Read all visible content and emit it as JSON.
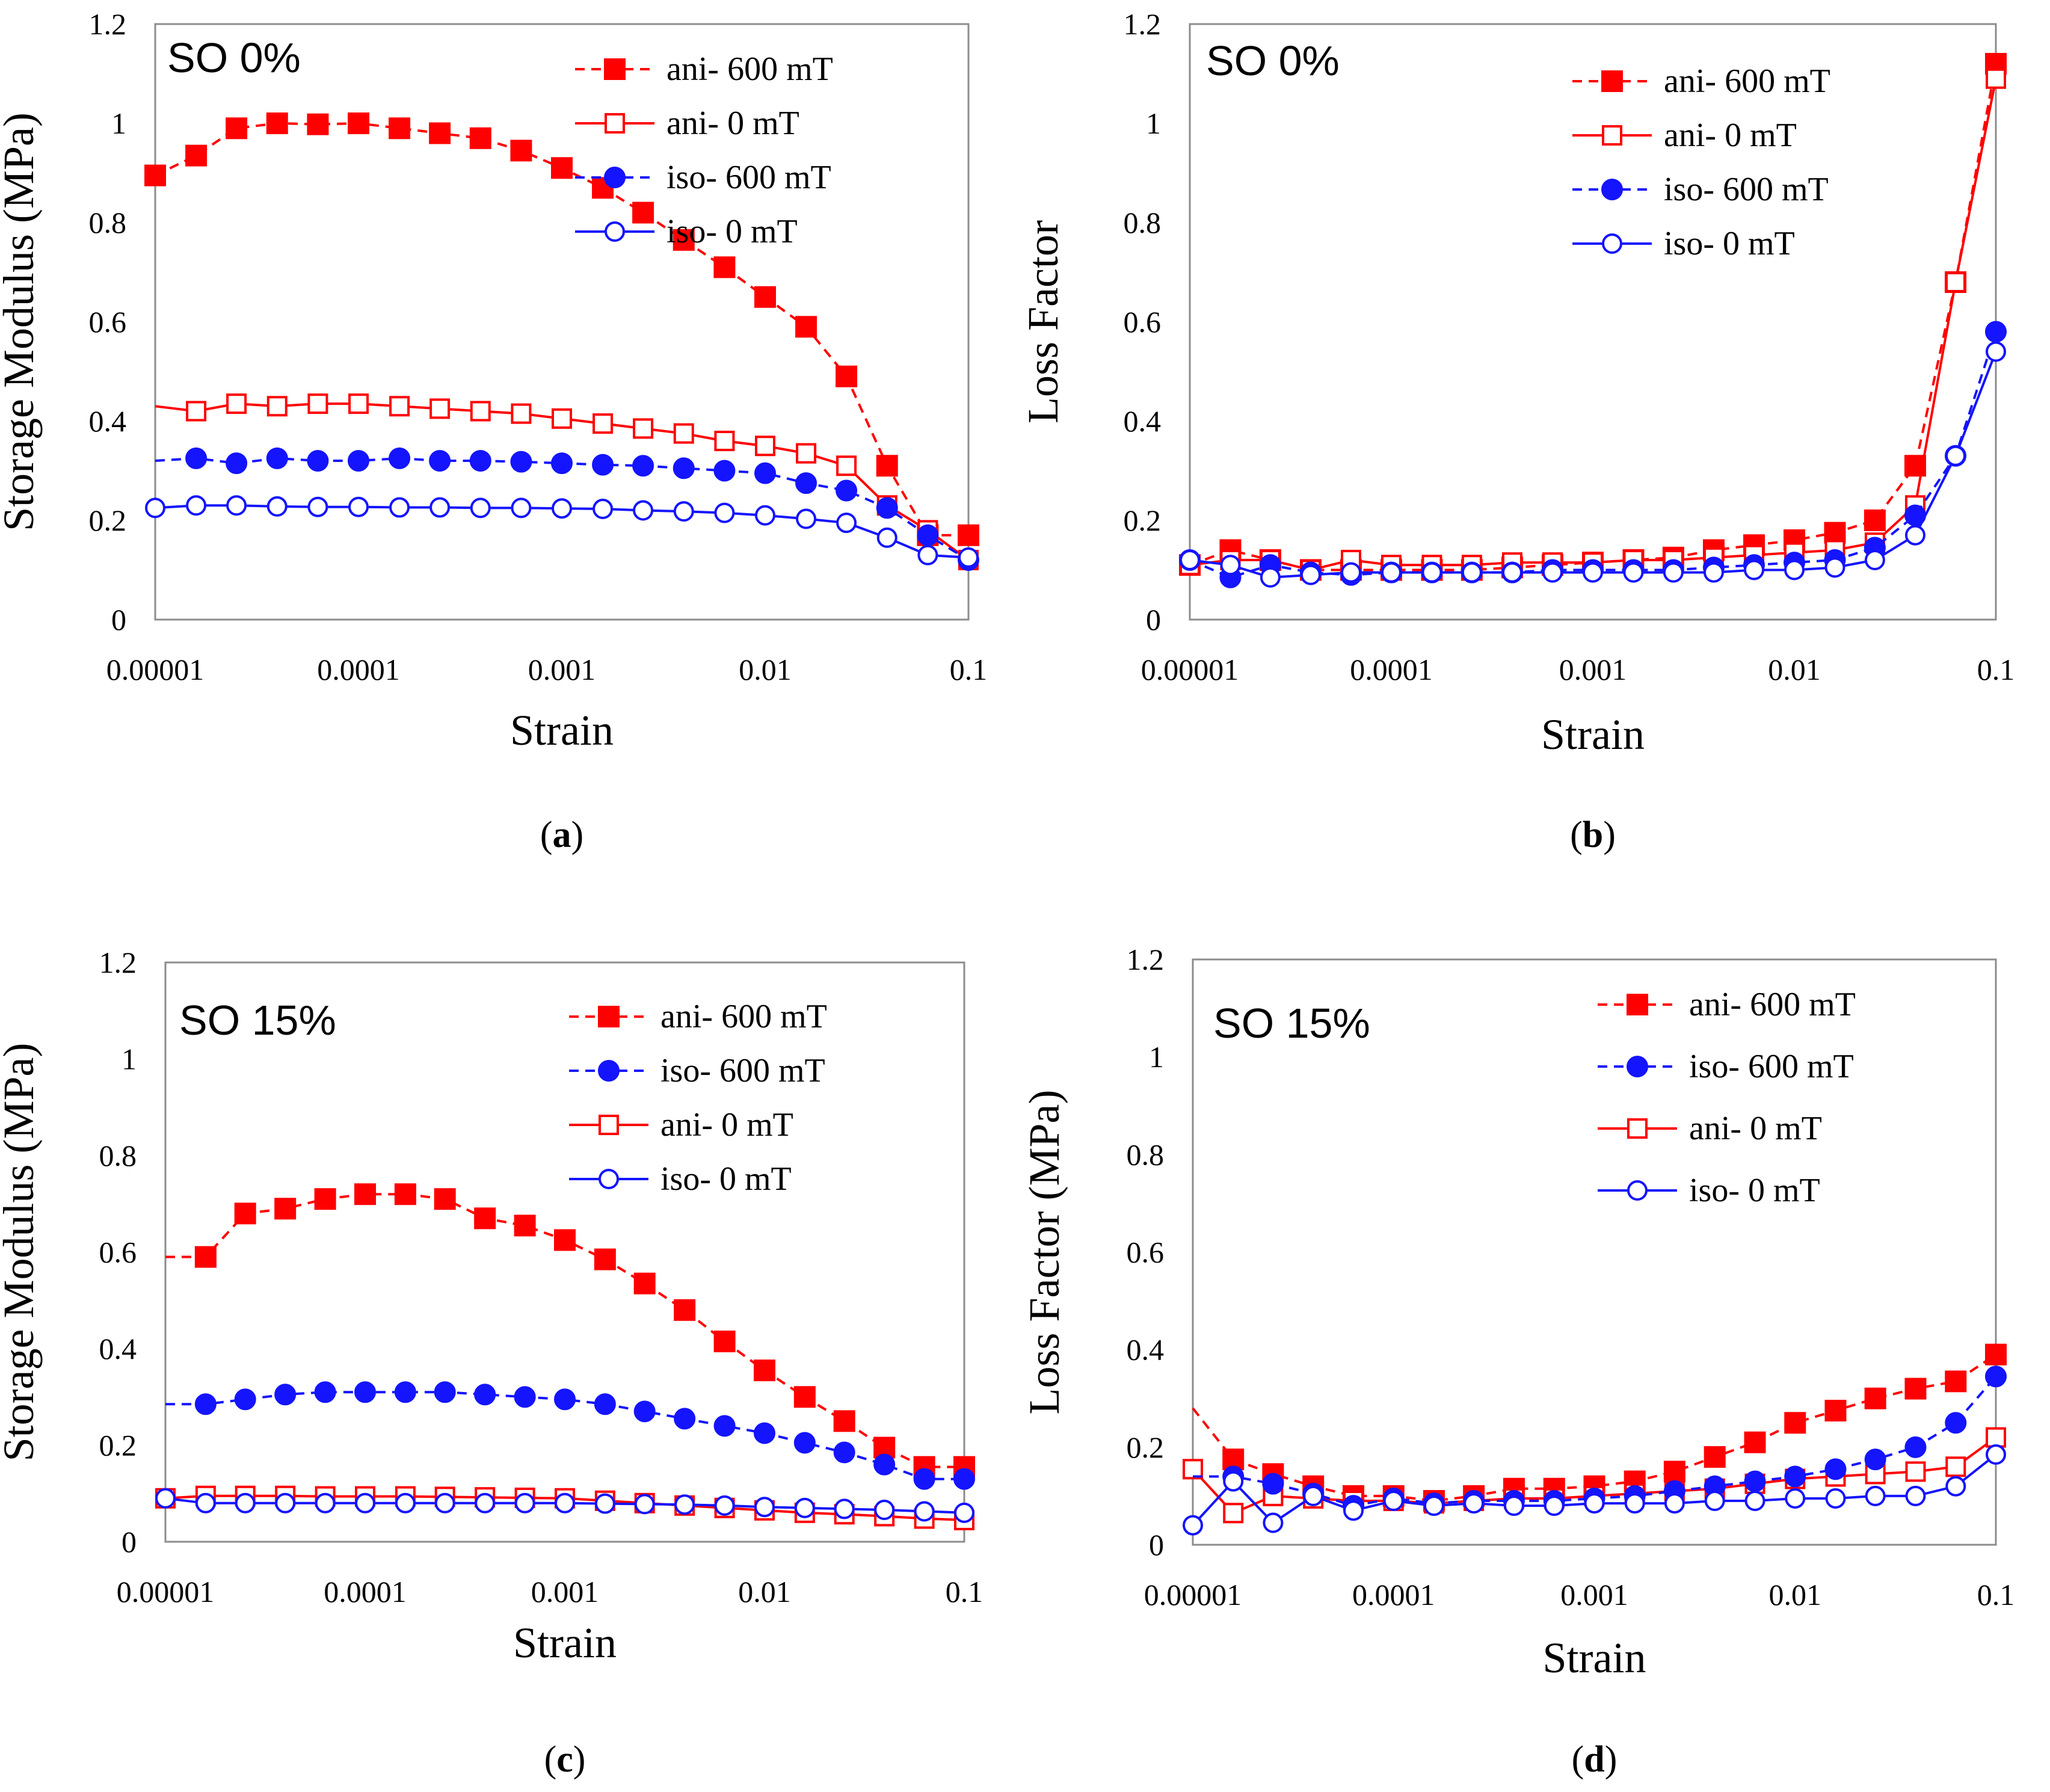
{
  "colors": {
    "red": "#ff0000",
    "blue": "#1414ff",
    "frame": "#8c8c8c",
    "axis": "#9a9a9a"
  },
  "chart_data": [
    {
      "id": "a",
      "type": "line",
      "caption": "a",
      "label": "SO 0%",
      "xlabel": "Strain",
      "ylabel": "Storage Modulus (MPa)",
      "xscale": "log",
      "xlim": [
        1e-05,
        0.1
      ],
      "ylim": [
        0,
        1.2
      ],
      "xticks": [
        "0.00001",
        "0.0001",
        "0.001",
        "0.01",
        "0.1"
      ],
      "yticks": [
        "0",
        "0.2",
        "0.4",
        "0.6",
        "0.8",
        "1",
        "1.2"
      ],
      "legend_order": [
        0,
        1,
        2,
        3
      ],
      "series": [
        {
          "name": "ani- 600 mT",
          "color": "red",
          "dashed": true,
          "marker": "square",
          "filled": true,
          "x": [
            1e-05,
            1.59e-05,
            2.51e-05,
            3.98e-05,
            6.31e-05,
            0.0001,
            0.000159,
            0.000251,
            0.000398,
            0.000631,
            0.001,
            0.00159,
            0.00251,
            0.00398,
            0.00631,
            0.01,
            0.0159,
            0.0251,
            0.0398,
            0.0631,
            0.1
          ],
          "y": [
            0.895,
            0.935,
            0.99,
            1.0,
            0.998,
            1.0,
            0.99,
            0.98,
            0.97,
            0.945,
            0.91,
            0.87,
            0.82,
            0.765,
            0.71,
            0.65,
            0.59,
            0.49,
            0.31,
            0.17,
            0.17
          ]
        },
        {
          "name": "ani- 0 mT",
          "color": "red",
          "dashed": false,
          "marker": "square",
          "filled": false,
          "x": [
            1e-05,
            1.59e-05,
            2.51e-05,
            3.98e-05,
            6.31e-05,
            0.0001,
            0.000159,
            0.000251,
            0.000398,
            0.000631,
            0.001,
            0.00159,
            0.00251,
            0.00398,
            0.00631,
            0.01,
            0.0159,
            0.0251,
            0.0398,
            0.0631,
            0.1
          ],
          "y": [
            0.43,
            0.42,
            0.435,
            0.43,
            0.435,
            0.435,
            0.43,
            0.425,
            0.42,
            0.415,
            0.405,
            0.395,
            0.385,
            0.375,
            0.36,
            0.35,
            0.335,
            0.31,
            0.23,
            0.18,
            0.12
          ],
          "marker_from": 1
        },
        {
          "name": "iso- 600 mT",
          "color": "blue",
          "dashed": true,
          "marker": "circle",
          "filled": true,
          "x": [
            1e-05,
            1.59e-05,
            2.51e-05,
            3.98e-05,
            6.31e-05,
            0.0001,
            0.000159,
            0.000251,
            0.000398,
            0.000631,
            0.001,
            0.00159,
            0.00251,
            0.00398,
            0.00631,
            0.01,
            0.0159,
            0.0251,
            0.0398,
            0.0631,
            0.1
          ],
          "y": [
            0.32,
            0.325,
            0.315,
            0.325,
            0.32,
            0.32,
            0.325,
            0.32,
            0.32,
            0.318,
            0.315,
            0.312,
            0.31,
            0.305,
            0.3,
            0.295,
            0.275,
            0.26,
            0.225,
            0.17,
            0.12
          ],
          "marker_from": 1
        },
        {
          "name": "iso- 0 mT",
          "color": "blue",
          "dashed": false,
          "marker": "circle",
          "filled": false,
          "x": [
            1e-05,
            1.59e-05,
            2.51e-05,
            3.98e-05,
            6.31e-05,
            0.0001,
            0.000159,
            0.000251,
            0.000398,
            0.000631,
            0.001,
            0.00159,
            0.00251,
            0.00398,
            0.00631,
            0.01,
            0.0159,
            0.0251,
            0.0398,
            0.0631,
            0.1
          ],
          "y": [
            0.225,
            0.23,
            0.23,
            0.228,
            0.227,
            0.227,
            0.226,
            0.226,
            0.225,
            0.225,
            0.224,
            0.223,
            0.22,
            0.218,
            0.215,
            0.21,
            0.203,
            0.195,
            0.165,
            0.13,
            0.125
          ]
        }
      ]
    },
    {
      "id": "b",
      "type": "line",
      "caption": "b",
      "label": "SO 0%",
      "xlabel": "Strain",
      "ylabel": "Loss Factor",
      "xscale": "log",
      "xlim": [
        1e-05,
        0.1
      ],
      "ylim": [
        0,
        1.2
      ],
      "xticks": [
        "0.00001",
        "0.0001",
        "0.001",
        "0.01",
        "0.1"
      ],
      "yticks": [
        "0",
        "0.2",
        "0.4",
        "0.6",
        "0.8",
        "1",
        "1.2"
      ],
      "legend_order": [
        0,
        1,
        2,
        3
      ],
      "series": [
        {
          "name": "ani- 600 mT",
          "color": "red",
          "dashed": true,
          "marker": "square",
          "filled": true,
          "x": [
            1e-05,
            1.59e-05,
            2.51e-05,
            3.98e-05,
            6.31e-05,
            0.0001,
            0.000159,
            0.000251,
            0.000398,
            0.000631,
            0.001,
            0.00159,
            0.00251,
            0.00398,
            0.00631,
            0.01,
            0.0159,
            0.0251,
            0.0398,
            0.0631,
            0.1
          ],
          "y": [
            0.11,
            0.14,
            0.12,
            0.1,
            0.1,
            0.1,
            0.1,
            0.1,
            0.105,
            0.11,
            0.115,
            0.12,
            0.125,
            0.14,
            0.15,
            0.16,
            0.175,
            0.2,
            0.31,
            0.68,
            1.12
          ]
        },
        {
          "name": "ani- 0 mT",
          "color": "red",
          "dashed": false,
          "marker": "square",
          "filled": false,
          "x": [
            1e-05,
            1.59e-05,
            2.51e-05,
            3.98e-05,
            6.31e-05,
            0.0001,
            0.000159,
            0.000251,
            0.000398,
            0.000631,
            0.001,
            0.00159,
            0.00251,
            0.00398,
            0.00631,
            0.01,
            0.0159,
            0.0251,
            0.0398,
            0.0631,
            0.1
          ],
          "y": [
            0.11,
            0.12,
            0.12,
            0.1,
            0.12,
            0.11,
            0.11,
            0.11,
            0.115,
            0.115,
            0.115,
            0.12,
            0.12,
            0.125,
            0.13,
            0.135,
            0.14,
            0.155,
            0.23,
            0.68,
            1.09
          ]
        },
        {
          "name": "iso- 600 mT",
          "color": "blue",
          "dashed": true,
          "marker": "circle",
          "filled": true,
          "x": [
            1e-05,
            1.59e-05,
            2.51e-05,
            3.98e-05,
            6.31e-05,
            0.0001,
            0.000159,
            0.000251,
            0.000398,
            0.000631,
            0.001,
            0.00159,
            0.00251,
            0.00398,
            0.00631,
            0.01,
            0.0159,
            0.0251,
            0.0398,
            0.0631,
            0.1
          ],
          "y": [
            0.12,
            0.085,
            0.11,
            0.095,
            0.09,
            0.095,
            0.095,
            0.095,
            0.095,
            0.1,
            0.1,
            0.1,
            0.1,
            0.105,
            0.11,
            0.115,
            0.12,
            0.145,
            0.21,
            0.33,
            0.58
          ]
        },
        {
          "name": "iso- 0 mT",
          "color": "blue",
          "dashed": false,
          "marker": "circle",
          "filled": false,
          "x": [
            1e-05,
            1.59e-05,
            2.51e-05,
            3.98e-05,
            6.31e-05,
            0.0001,
            0.000159,
            0.000251,
            0.000398,
            0.000631,
            0.001,
            0.00159,
            0.00251,
            0.00398,
            0.00631,
            0.01,
            0.0159,
            0.0251,
            0.0398,
            0.0631,
            0.1
          ],
          "y": [
            0.12,
            0.11,
            0.085,
            0.09,
            0.095,
            0.095,
            0.095,
            0.095,
            0.095,
            0.095,
            0.095,
            0.095,
            0.095,
            0.095,
            0.1,
            0.1,
            0.105,
            0.12,
            0.17,
            0.33,
            0.54
          ]
        }
      ]
    },
    {
      "id": "c",
      "type": "line",
      "caption": "c",
      "label": "SO 15%",
      "xlabel": "Strain",
      "ylabel": "Storage Modulus (MPa)",
      "xscale": "log",
      "xlim": [
        1e-05,
        0.1
      ],
      "ylim": [
        0,
        1.2
      ],
      "xticks": [
        "0.00001",
        "0.0001",
        "0.001",
        "0.01",
        "0.1"
      ],
      "yticks": [
        "0",
        "0.2",
        "0.4",
        "0.6",
        "0.8",
        "1",
        "1.2"
      ],
      "legend_order": [
        0,
        2,
        1,
        3
      ],
      "series": [
        {
          "name": "ani- 600 mT",
          "color": "red",
          "dashed": true,
          "marker": "square",
          "filled": true,
          "x": [
            1e-05,
            1.59e-05,
            2.51e-05,
            3.98e-05,
            6.31e-05,
            0.0001,
            0.000159,
            0.000251,
            0.000398,
            0.000631,
            0.001,
            0.00159,
            0.00251,
            0.00398,
            0.00631,
            0.01,
            0.0159,
            0.0251,
            0.0398,
            0.0631,
            0.1
          ],
          "y": [
            0.59,
            0.59,
            0.68,
            0.69,
            0.71,
            0.72,
            0.72,
            0.71,
            0.67,
            0.655,
            0.625,
            0.585,
            0.535,
            0.48,
            0.415,
            0.355,
            0.3,
            0.25,
            0.195,
            0.155,
            0.155
          ],
          "marker_from": 1
        },
        {
          "name": "ani- 0 mT",
          "color": "red",
          "dashed": false,
          "marker": "square",
          "filled": false,
          "x": [
            1e-05,
            1.59e-05,
            2.51e-05,
            3.98e-05,
            6.31e-05,
            0.0001,
            0.000159,
            0.000251,
            0.000398,
            0.000631,
            0.001,
            0.00159,
            0.00251,
            0.00398,
            0.00631,
            0.01,
            0.0159,
            0.0251,
            0.0398,
            0.0631,
            0.1
          ],
          "y": [
            0.09,
            0.095,
            0.095,
            0.095,
            0.094,
            0.094,
            0.094,
            0.093,
            0.092,
            0.091,
            0.09,
            0.085,
            0.08,
            0.075,
            0.07,
            0.065,
            0.06,
            0.057,
            0.053,
            0.048,
            0.045
          ]
        },
        {
          "name": "iso- 600 mT",
          "color": "blue",
          "dashed": true,
          "marker": "circle",
          "filled": true,
          "x": [
            1e-05,
            1.59e-05,
            2.51e-05,
            3.98e-05,
            6.31e-05,
            0.0001,
            0.000159,
            0.000251,
            0.000398,
            0.000631,
            0.001,
            0.00159,
            0.00251,
            0.00398,
            0.00631,
            0.01,
            0.0159,
            0.0251,
            0.0398,
            0.0631,
            0.1
          ],
          "y": [
            0.285,
            0.285,
            0.295,
            0.305,
            0.31,
            0.31,
            0.31,
            0.31,
            0.305,
            0.3,
            0.295,
            0.285,
            0.27,
            0.255,
            0.24,
            0.225,
            0.205,
            0.185,
            0.16,
            0.13,
            0.13
          ],
          "marker_from": 1
        },
        {
          "name": "iso- 0 mT",
          "color": "blue",
          "dashed": false,
          "marker": "circle",
          "filled": false,
          "x": [
            1e-05,
            1.59e-05,
            2.51e-05,
            3.98e-05,
            6.31e-05,
            0.0001,
            0.000159,
            0.000251,
            0.000398,
            0.000631,
            0.001,
            0.00159,
            0.00251,
            0.00398,
            0.00631,
            0.01,
            0.0159,
            0.0251,
            0.0398,
            0.0631,
            0.1
          ],
          "y": [
            0.09,
            0.08,
            0.08,
            0.08,
            0.08,
            0.08,
            0.08,
            0.08,
            0.08,
            0.08,
            0.08,
            0.079,
            0.078,
            0.077,
            0.075,
            0.072,
            0.07,
            0.068,
            0.066,
            0.063,
            0.06
          ]
        }
      ]
    },
    {
      "id": "d",
      "type": "line",
      "caption": "d",
      "label": "SO 15%",
      "xlabel": "Strain",
      "ylabel": "Loss Factor (MPa)",
      "xscale": "log",
      "xlim": [
        1e-05,
        0.1
      ],
      "ylim": [
        0,
        1.2
      ],
      "xticks": [
        "0.00001",
        "0.0001",
        "0.001",
        "0.01",
        "0.1"
      ],
      "yticks": [
        "0",
        "0.2",
        "0.4",
        "0.6",
        "0.8",
        "1",
        "1.2"
      ],
      "legend_order": [
        0,
        2,
        1,
        3
      ],
      "series": [
        {
          "name": "ani- 600 mT",
          "color": "red",
          "dashed": true,
          "marker": "square",
          "filled": true,
          "x": [
            1e-05,
            1.59e-05,
            2.51e-05,
            3.98e-05,
            6.31e-05,
            0.0001,
            0.000159,
            0.000251,
            0.000398,
            0.000631,
            0.001,
            0.00159,
            0.00251,
            0.00398,
            0.00631,
            0.01,
            0.0159,
            0.0251,
            0.0398,
            0.0631,
            0.1
          ],
          "y": [
            0.28,
            0.175,
            0.145,
            0.12,
            0.1,
            0.1,
            0.09,
            0.1,
            0.115,
            0.115,
            0.12,
            0.13,
            0.15,
            0.18,
            0.21,
            0.25,
            0.275,
            0.3,
            0.32,
            0.335,
            0.39
          ],
          "marker_from": 1
        },
        {
          "name": "ani- 0 mT",
          "color": "red",
          "dashed": false,
          "marker": "square",
          "filled": false,
          "x": [
            1e-05,
            1.59e-05,
            2.51e-05,
            3.98e-05,
            6.31e-05,
            0.0001,
            0.000159,
            0.000251,
            0.000398,
            0.000631,
            0.001,
            0.00159,
            0.00251,
            0.00398,
            0.00631,
            0.01,
            0.0159,
            0.0251,
            0.0398,
            0.0631,
            0.1
          ],
          "y": [
            0.155,
            0.065,
            0.1,
            0.095,
            0.09,
            0.09,
            0.085,
            0.09,
            0.095,
            0.095,
            0.1,
            0.105,
            0.11,
            0.115,
            0.125,
            0.135,
            0.14,
            0.145,
            0.15,
            0.16,
            0.22
          ]
        },
        {
          "name": "iso- 600 mT",
          "color": "blue",
          "dashed": true,
          "marker": "circle",
          "filled": true,
          "x": [
            1e-05,
            1.59e-05,
            2.51e-05,
            3.98e-05,
            6.31e-05,
            0.0001,
            0.000159,
            0.000251,
            0.000398,
            0.000631,
            0.001,
            0.00159,
            0.00251,
            0.00398,
            0.00631,
            0.01,
            0.0159,
            0.0251,
            0.0398,
            0.0631,
            0.1
          ],
          "y": [
            0.14,
            0.14,
            0.125,
            0.105,
            0.08,
            0.095,
            0.085,
            0.09,
            0.09,
            0.09,
            0.095,
            0.1,
            0.11,
            0.12,
            0.13,
            0.14,
            0.155,
            0.175,
            0.2,
            0.25,
            0.345
          ],
          "marker_from": 1
        },
        {
          "name": "iso- 0 mT",
          "color": "blue",
          "dashed": false,
          "marker": "circle",
          "filled": false,
          "x": [
            1e-05,
            1.59e-05,
            2.51e-05,
            3.98e-05,
            6.31e-05,
            0.0001,
            0.000159,
            0.000251,
            0.000398,
            0.000631,
            0.001,
            0.00159,
            0.00251,
            0.00398,
            0.00631,
            0.01,
            0.0159,
            0.0251,
            0.0398,
            0.0631,
            0.1
          ],
          "y": [
            0.04,
            0.13,
            0.045,
            0.1,
            0.07,
            0.09,
            0.08,
            0.085,
            0.08,
            0.08,
            0.085,
            0.085,
            0.085,
            0.09,
            0.09,
            0.095,
            0.095,
            0.1,
            0.1,
            0.12,
            0.185
          ]
        }
      ]
    }
  ]
}
